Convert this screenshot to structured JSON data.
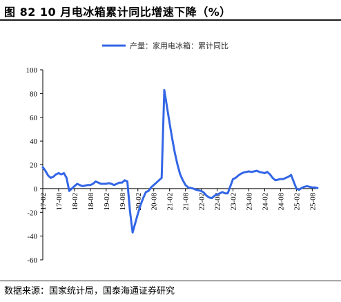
{
  "figure": {
    "title": "图 82 10 月电冰箱累计同比增速下降（%）",
    "source": "数据来源：国家统计局，国泰海通证券研究"
  },
  "colors": {
    "series": "#3366e6",
    "axis": "#000000"
  },
  "chart_data": {
    "type": "line",
    "ylim": [
      -60,
      100
    ],
    "yticks": [
      100,
      80,
      60,
      40,
      20,
      0,
      -20,
      -40,
      -60
    ],
    "legend_position": "top-center",
    "xtick_labels": [
      "17-02",
      "17-08",
      "18-02",
      "18-08",
      "19-02",
      "19-08",
      "20-02",
      "20-08",
      "21-02",
      "21-08",
      "22-02",
      "22-08",
      "23-02",
      "23-08",
      "24-02",
      "24-08",
      "25-02",
      "25-08"
    ],
    "series": [
      {
        "name": "产量：家用电冰箱：累计同比",
        "x": [
          "17-02",
          "17-03",
          "17-04",
          "17-05",
          "17-06",
          "17-07",
          "17-08",
          "17-09",
          "17-10",
          "17-11",
          "17-12",
          "18-02",
          "18-03",
          "18-04",
          "18-05",
          "18-06",
          "18-07",
          "18-08",
          "18-09",
          "18-10",
          "18-11",
          "18-12",
          "19-02",
          "19-03",
          "19-04",
          "19-05",
          "19-06",
          "19-07",
          "19-08",
          "19-09",
          "19-10",
          "19-11",
          "19-12",
          "20-02",
          "20-03",
          "20-04",
          "20-05",
          "20-06",
          "20-07",
          "20-08",
          "20-09",
          "20-10",
          "20-11",
          "20-12",
          "21-02",
          "21-03",
          "21-04",
          "21-05",
          "21-06",
          "21-07",
          "21-08",
          "21-09",
          "21-10",
          "21-11",
          "21-12",
          "22-02",
          "22-03",
          "22-04",
          "22-05",
          "22-06",
          "22-07",
          "22-08",
          "22-09",
          "22-10",
          "22-11",
          "22-12",
          "23-02",
          "23-03",
          "23-04",
          "23-05",
          "23-06",
          "23-07",
          "23-08",
          "23-09",
          "23-10",
          "23-11",
          "23-12",
          "24-02",
          "24-03",
          "24-04",
          "24-05",
          "24-06",
          "24-07",
          "24-08",
          "24-09",
          "24-10",
          "24-11",
          "24-12",
          "25-02",
          "25-03",
          "25-04",
          "25-05",
          "25-06",
          "25-07",
          "25-08",
          "25-09",
          "25-10"
        ],
        "values": [
          18,
          15,
          11,
          9,
          10,
          12,
          13,
          12,
          13,
          9,
          -2,
          2,
          4,
          3,
          2,
          2.5,
          3,
          3,
          4,
          6,
          5,
          4,
          4,
          4.5,
          4,
          3,
          4,
          5,
          5,
          7,
          6,
          -19,
          -37,
          -21,
          -14,
          -8,
          -3,
          -2,
          1,
          3,
          5,
          7,
          9,
          83,
          55,
          42,
          30,
          20,
          12,
          7,
          3,
          1,
          0.5,
          0,
          -1,
          -2,
          -3.5,
          -6,
          -7.5,
          -8,
          -6,
          -5,
          -4,
          -3,
          -4,
          -4,
          8,
          9,
          11,
          12.5,
          13.5,
          14,
          14.5,
          14,
          14.5,
          15,
          14,
          13,
          14,
          12,
          9,
          7,
          7.5,
          8,
          8,
          9,
          10,
          11.5,
          0,
          -1,
          0.5,
          1.5,
          2,
          1.5,
          1,
          1,
          0.5
        ]
      }
    ]
  }
}
